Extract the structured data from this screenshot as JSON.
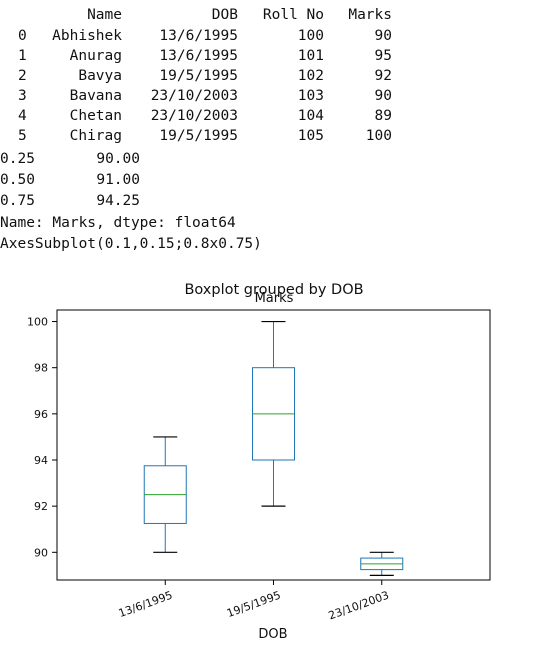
{
  "output": {
    "table": {
      "columns": [
        "Name",
        "DOB",
        "Roll No",
        "Marks"
      ],
      "rows": [
        {
          "index": "0",
          "name": "Abhishek",
          "dob": "13/6/1995",
          "roll": "100",
          "marks": "90"
        },
        {
          "index": "1",
          "name": "Anurag",
          "dob": "13/6/1995",
          "roll": "101",
          "marks": "95"
        },
        {
          "index": "2",
          "name": "Bavya",
          "dob": "19/5/1995",
          "roll": "102",
          "marks": "92"
        },
        {
          "index": "3",
          "name": "Bavana",
          "dob": "23/10/2003",
          "roll": "103",
          "marks": "90"
        },
        {
          "index": "4",
          "name": "Chetan",
          "dob": "23/10/2003",
          "roll": "104",
          "marks": "89"
        },
        {
          "index": "5",
          "name": "Chirag",
          "dob": "19/5/1995",
          "roll": "105",
          "marks": "100"
        }
      ]
    },
    "quantiles": [
      {
        "q": "0.25",
        "value": "90.00"
      },
      {
        "q": "0.50",
        "value": "91.00"
      },
      {
        "q": "0.75",
        "value": "94.25"
      }
    ],
    "series_info": "Name: Marks, dtype: float64",
    "axes_repr": "AxesSubplot(0.1,0.15;0.8x0.75)"
  },
  "colors": {
    "box": "#1f77b4",
    "whisker": "#1f77b4",
    "median": "#2ca02c",
    "cap": "#000000"
  },
  "chart_data": {
    "type": "boxplot",
    "suptitle": "Boxplot grouped by DOB",
    "title": "Marks",
    "xlabel": "DOB",
    "ylabel": "",
    "ylim": [
      88.8,
      100.5
    ],
    "yticks": [
      90,
      92,
      94,
      96,
      98,
      100
    ],
    "ytick_labels": [
      "90",
      "92",
      "94",
      "96",
      "98",
      "100"
    ],
    "grid": false,
    "categories": [
      "13/6/1995",
      "19/5/1995",
      "23/10/2003"
    ],
    "boxes": [
      {
        "category": "13/6/1995",
        "whisker_low": 90,
        "q1": 91.25,
        "median": 92.5,
        "q3": 93.75,
        "whisker_high": 95
      },
      {
        "category": "19/5/1995",
        "whisker_low": 92,
        "q1": 94,
        "median": 96,
        "q3": 98,
        "whisker_high": 100
      },
      {
        "category": "23/10/2003",
        "whisker_low": 89,
        "q1": 89.25,
        "median": 89.5,
        "q3": 89.75,
        "whisker_high": 90
      }
    ]
  }
}
